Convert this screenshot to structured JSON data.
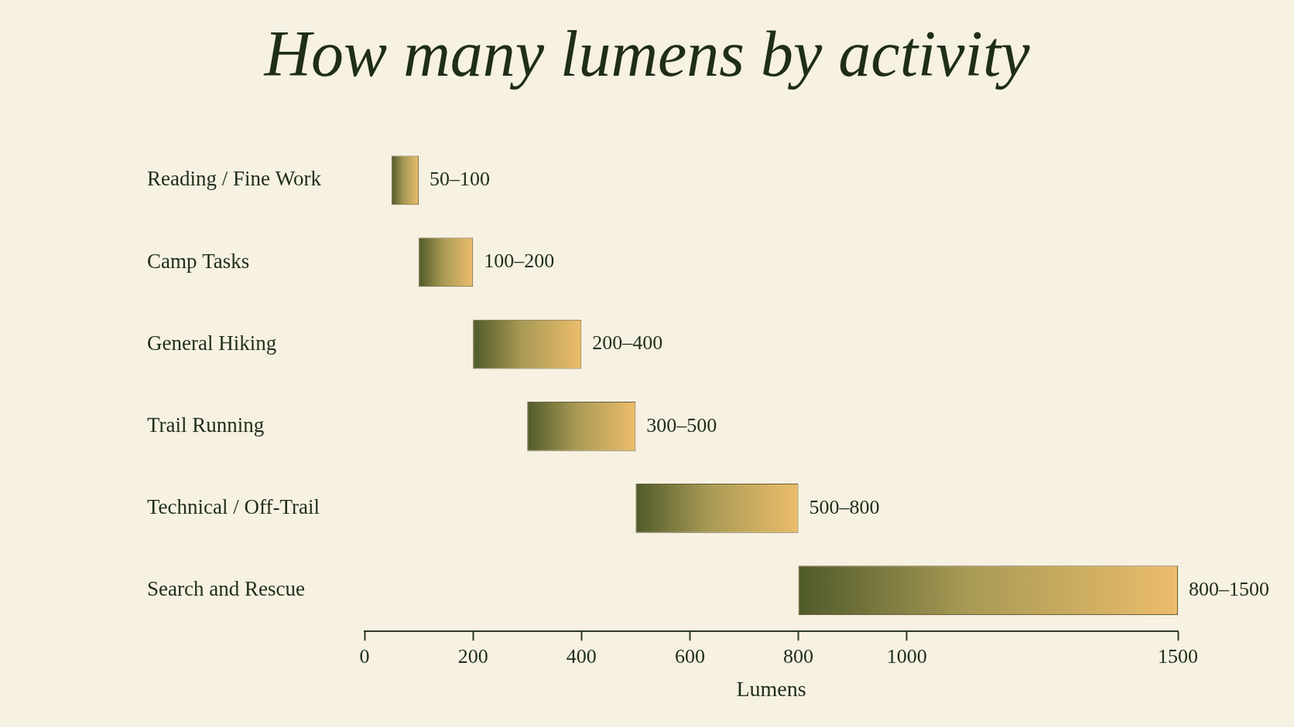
{
  "chart_data": {
    "type": "bar",
    "title": "How many lumens by activity",
    "orientation": "horizontal",
    "categories": [
      "Reading / Fine Work",
      "Camp Tasks",
      "General Hiking",
      "Trail Running",
      "Technical / Off-Trail",
      "Search and Rescue"
    ],
    "values": [
      [
        50,
        100
      ],
      [
        100,
        200
      ],
      [
        200,
        400
      ],
      [
        300,
        500
      ],
      [
        500,
        800
      ],
      [
        800,
        1500
      ]
    ],
    "value_labels": [
      "50–100",
      "100–200",
      "200–400",
      "300–500",
      "500–800",
      "800–1500"
    ],
    "data_labels": true,
    "xlabel": "Lumens",
    "xlim": [
      0,
      1500
    ],
    "xticks": [
      0,
      200,
      400,
      600,
      800,
      1000,
      1500
    ],
    "grid": false,
    "color": "#4f5a2a"
  }
}
